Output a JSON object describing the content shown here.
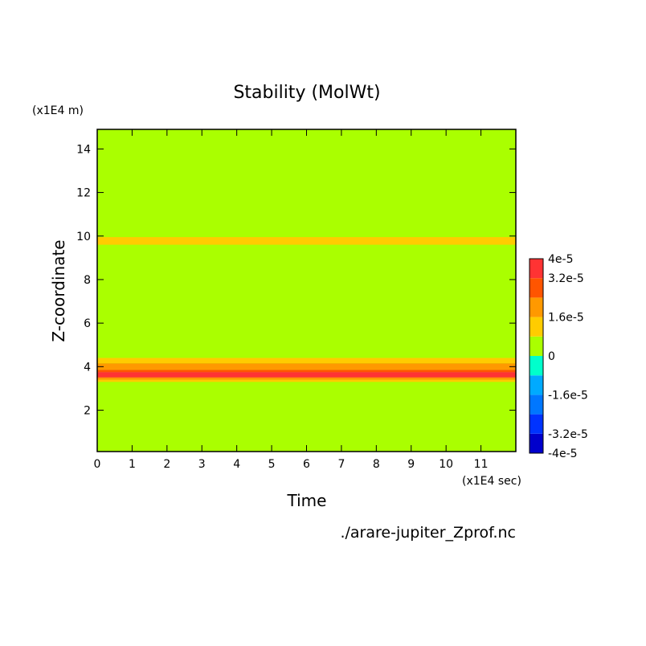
{
  "chart_data": {
    "type": "heatmap",
    "title": "Stability (MolWt)",
    "xlabel": "Time",
    "ylabel": "Z-coordinate",
    "x_unit": "(x1E4 sec)",
    "y_unit": "(x1E4 m)",
    "xlim": [
      0,
      12
    ],
    "ylim": [
      0.1,
      14.9
    ],
    "x_ticks": [
      "0",
      "1",
      "2",
      "3",
      "4",
      "5",
      "6",
      "7",
      "8",
      "9",
      "10",
      "11"
    ],
    "y_ticks": [
      "2",
      "4",
      "6",
      "8",
      "10",
      "12",
      "14"
    ],
    "colorbar": {
      "range": [
        -4e-05,
        4e-05
      ],
      "levels": [
        -4e-05,
        -3.2e-05,
        -2.4e-05,
        -1.6e-05,
        -8e-06,
        0,
        8e-06,
        1.6e-05,
        2.4e-05,
        3.2e-05,
        4e-05
      ],
      "colors": [
        "#0000cc",
        "#0033ff",
        "#0077ff",
        "#00aaff",
        "#00ffcc",
        "#aaff00",
        "#ffcc00",
        "#ff9900",
        "#ff5500",
        "#ff3333"
      ],
      "tick_labels": [
        "4e-5",
        "3.2e-5",
        "1.6e-5",
        "0",
        "-1.6e-5",
        "-3.2e-5",
        "-4e-5"
      ]
    },
    "background_value": 4e-06,
    "regions": [
      {
        "z": [
          9.6,
          9.95
        ],
        "t": [
          0,
          12
        ],
        "value": 1.2e-05
      },
      {
        "z": [
          4.15,
          4.4
        ],
        "t": [
          0,
          12
        ],
        "value": 1.2e-05
      },
      {
        "z": [
          3.85,
          4.15
        ],
        "t": [
          0,
          12
        ],
        "value": 2e-05
      },
      {
        "z": [
          3.75,
          3.85
        ],
        "t": [
          0,
          12
        ],
        "value": 2.8e-05
      },
      {
        "z": [
          3.5,
          3.75
        ],
        "t": [
          0,
          12
        ],
        "value": 3.6e-05
      },
      {
        "z": [
          3.4,
          3.5
        ],
        "t": [
          0,
          12
        ],
        "value": 2e-05
      },
      {
        "z": [
          3.3,
          3.4
        ],
        "t": [
          0,
          12
        ],
        "value": 1.2e-05
      }
    ],
    "source_file": "./arare-jupiter_Zprof.nc"
  }
}
